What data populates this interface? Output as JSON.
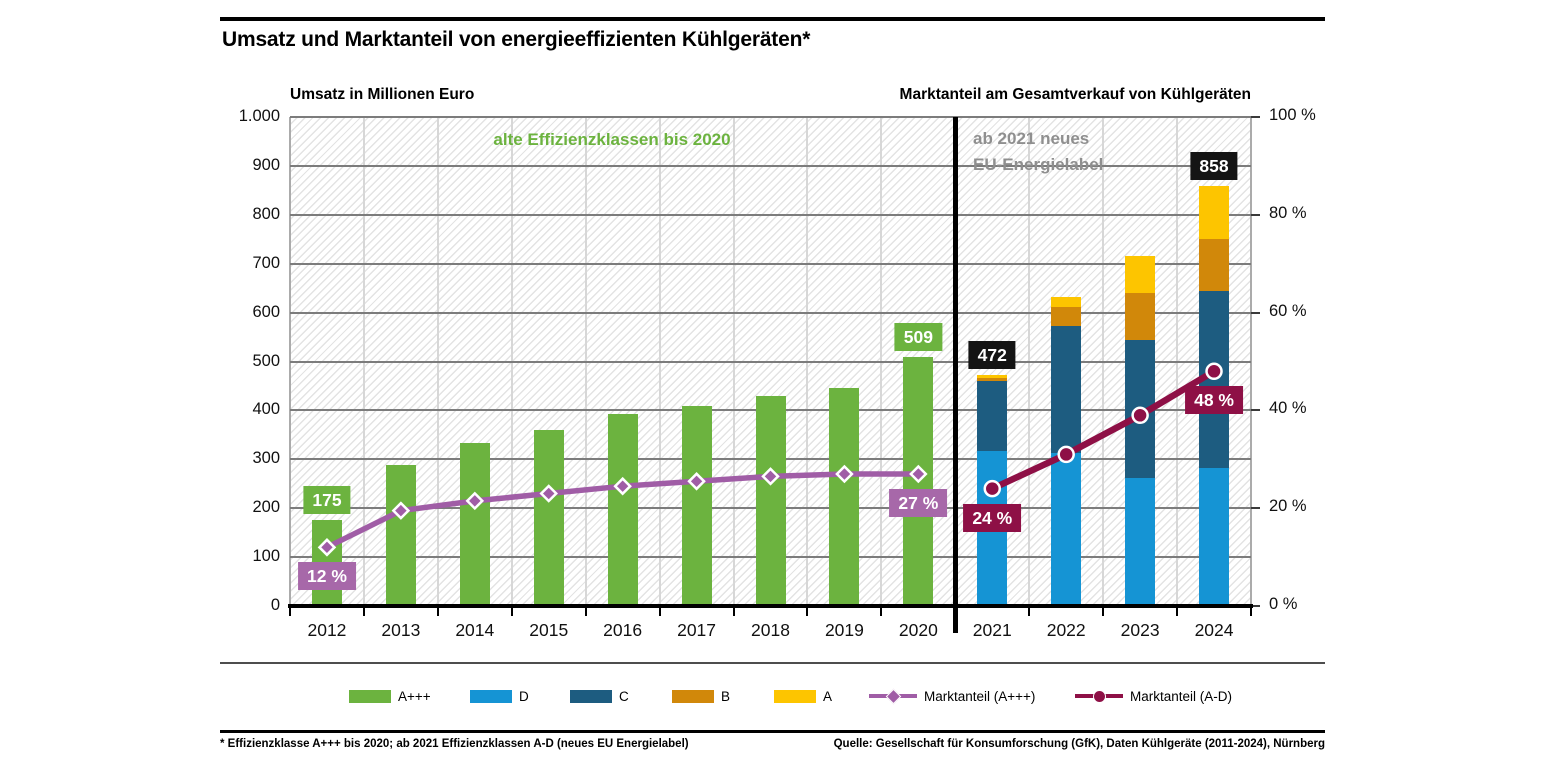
{
  "title": "Umsatz und Marktanteil von energieeffizienten Kühlgeräten*",
  "axis_headers": {
    "left": "Umsatz in Millionen Euro",
    "right": "Marktanteil am Gesamtverkauf von Kühlgeräten"
  },
  "annotations": {
    "old_classes": "alte Effizienzklassen bis 2020",
    "new_label": [
      "ab 2021 neues",
      "EU-Energielabel"
    ]
  },
  "colors": {
    "green": "#6CB33F",
    "light_blue": "#1594D4",
    "dark_blue": "#1D5C80",
    "orange": "#D1880A",
    "yellow": "#FDC500",
    "purple": "#A05DA6",
    "purple_box": "#A768A9",
    "dark_red": "#8E1046",
    "black_box": "#141414",
    "gray_text": "#8F8F8F"
  },
  "chart_data": {
    "type": "bar",
    "subtype": "stacked-bars-with-percent-lines",
    "categories": [
      "2012",
      "2013",
      "2014",
      "2015",
      "2016",
      "2017",
      "2018",
      "2019",
      "2020",
      "2021",
      "2022",
      "2023",
      "2024"
    ],
    "left_axis": {
      "title": "Umsatz in Millionen Euro",
      "range": [
        0,
        1000
      ],
      "gridline_step": 100,
      "tick_labels": [
        "1.000",
        "900",
        "800",
        "700",
        "600",
        "500",
        "400",
        "300",
        "200",
        "100",
        "0"
      ]
    },
    "right_axis": {
      "title": "Marktanteil am Gesamtverkauf von Kühlgeräten",
      "range": [
        0,
        100
      ],
      "gridline_step": 10,
      "tick_labels": [
        "100 %",
        "80 %",
        "60 %",
        "40 %",
        "20 %",
        "0 %"
      ]
    },
    "bar_series": [
      {
        "name": "A+++",
        "color": "green",
        "values": [
          175,
          288,
          333,
          360,
          392,
          408,
          430,
          446,
          509,
          null,
          null,
          null,
          null
        ]
      },
      {
        "name": "D",
        "color": "light_blue",
        "values": [
          null,
          null,
          null,
          null,
          null,
          null,
          null,
          null,
          null,
          317,
          312,
          261,
          283
        ]
      },
      {
        "name": "C",
        "color": "dark_blue",
        "values": [
          null,
          null,
          null,
          null,
          null,
          null,
          null,
          null,
          null,
          144,
          261,
          282,
          362
        ]
      },
      {
        "name": "B",
        "color": "orange",
        "values": [
          null,
          null,
          null,
          null,
          null,
          null,
          null,
          null,
          null,
          6,
          39,
          98,
          105
        ]
      },
      {
        "name": "A",
        "color": "yellow",
        "values": [
          null,
          null,
          null,
          null,
          null,
          null,
          null,
          null,
          null,
          5,
          20,
          75,
          108
        ]
      }
    ],
    "line_series": [
      {
        "name": "Marktanteil (A+++)",
        "color": "purple",
        "marker": "diamond",
        "values_percent": [
          12,
          19.5,
          21.5,
          23,
          24.5,
          25.5,
          26.5,
          27,
          27,
          null,
          null,
          null,
          null
        ]
      },
      {
        "name": "Marktanteil (A-D)",
        "color": "dark_red",
        "marker": "circle",
        "values_percent": [
          null,
          null,
          null,
          null,
          null,
          null,
          null,
          null,
          null,
          24,
          31,
          39,
          48
        ]
      }
    ],
    "value_labels": [
      {
        "category": "2012",
        "text": "175",
        "color": "green"
      },
      {
        "category": "2020",
        "text": "509",
        "color": "green"
      },
      {
        "category": "2021",
        "text": "472",
        "color": "black_box"
      },
      {
        "category": "2024",
        "text": "858",
        "color": "black_box"
      }
    ],
    "share_labels": [
      {
        "category": "2012",
        "text": "12 %",
        "color": "purple_box"
      },
      {
        "category": "2020",
        "text": "27 %",
        "color": "purple_box"
      },
      {
        "category": "2021",
        "text": "24 %",
        "color": "dark_red"
      },
      {
        "category": "2024",
        "text": "48 %",
        "color": "dark_red"
      }
    ]
  },
  "legend": [
    {
      "label": "A+++",
      "type": "swatch",
      "color": "green"
    },
    {
      "label": "D",
      "type": "swatch",
      "color": "light_blue"
    },
    {
      "label": "C",
      "type": "swatch",
      "color": "dark_blue"
    },
    {
      "label": "B",
      "type": "swatch",
      "color": "orange"
    },
    {
      "label": "A",
      "type": "swatch",
      "color": "yellow"
    },
    {
      "label": "Marktanteil (A+++)",
      "type": "line",
      "marker": "diamond",
      "color": "purple"
    },
    {
      "label": "Marktanteil (A-D)",
      "type": "line",
      "marker": "circle",
      "color": "dark_red"
    }
  ],
  "footer": {
    "note": "* Effizienzklasse A+++ bis 2020; ab 2021 Effizienzklassen A-D (neues EU Energielabel)",
    "source": "Quelle: Gesellschaft für Konsumforschung (GfK), Daten Kühlgeräte (2011-2024), Nürnberg"
  }
}
